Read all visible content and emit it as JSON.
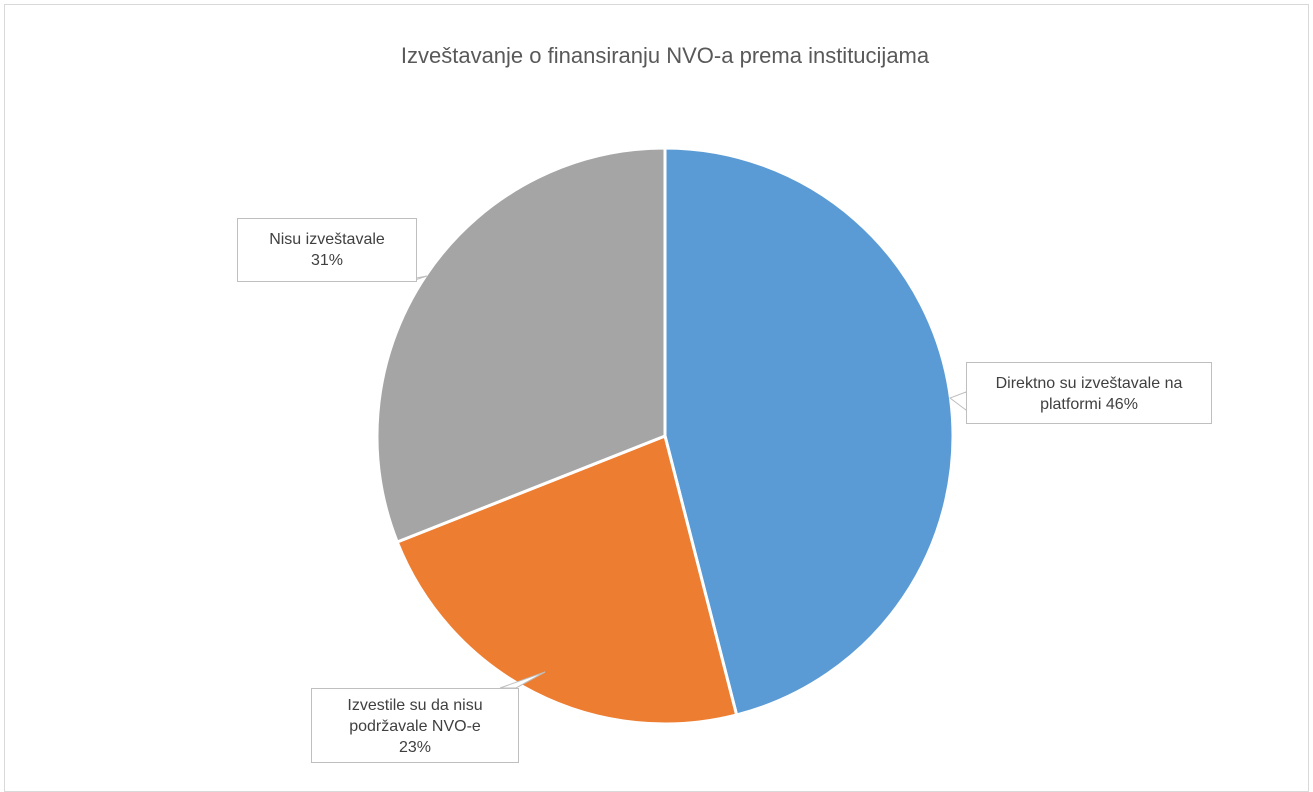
{
  "chart_data": {
    "type": "pie",
    "title": "Izveštavanje o finansiranju NVO-a prema institucijama",
    "categories": [
      "Direktno su izveštavale na platformi",
      "Izvestile su da nisu podržavale NVO-e",
      "Nisu izveštavale"
    ],
    "values": [
      46,
      23,
      31
    ],
    "value_labels": [
      "46%",
      "23%",
      "31%"
    ],
    "colors": [
      "#5b9bd5",
      "#ed7d31",
      "#a5a5a5"
    ]
  }
}
